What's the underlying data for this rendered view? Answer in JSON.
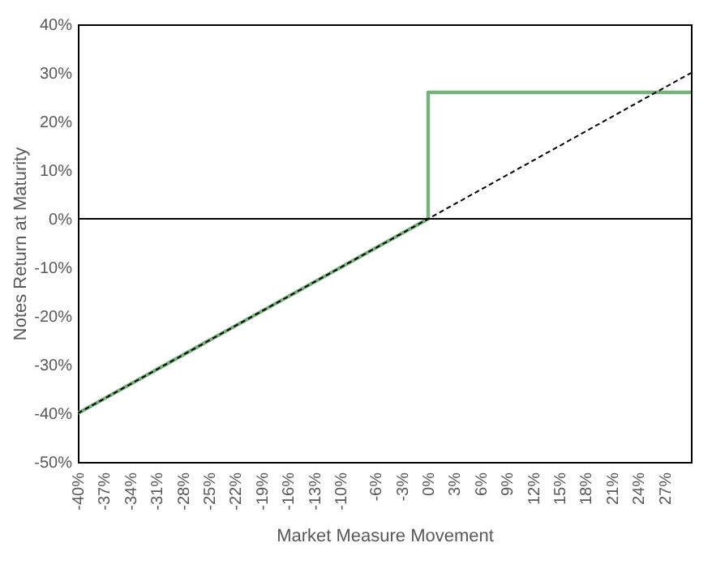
{
  "chart_data": {
    "type": "line",
    "xlabel": "Market Measure Movement",
    "ylabel": "Notes Return at Maturity",
    "xlim": [
      -40,
      30
    ],
    "ylim": [
      -50,
      40
    ],
    "xticks": [
      {
        "value": -40,
        "label": "-40%"
      },
      {
        "value": -37,
        "label": "-37%"
      },
      {
        "value": -34,
        "label": "-34%"
      },
      {
        "value": -31,
        "label": "-31%"
      },
      {
        "value": -28,
        "label": "-28%"
      },
      {
        "value": -25,
        "label": "-25%"
      },
      {
        "value": -22,
        "label": "-22%"
      },
      {
        "value": -19,
        "label": "-19%"
      },
      {
        "value": -16,
        "label": "-16%"
      },
      {
        "value": -13,
        "label": "-13%"
      },
      {
        "value": -10,
        "label": "-10%"
      },
      {
        "value": -6,
        "label": "-6%"
      },
      {
        "value": -3,
        "label": "-3%"
      },
      {
        "value": 0,
        "label": "0%"
      },
      {
        "value": 3,
        "label": "3%"
      },
      {
        "value": 6,
        "label": "6%"
      },
      {
        "value": 9,
        "label": "9%"
      },
      {
        "value": 12,
        "label": "12%"
      },
      {
        "value": 15,
        "label": "15%"
      },
      {
        "value": 18,
        "label": "18%"
      },
      {
        "value": 21,
        "label": "21%"
      },
      {
        "value": 24,
        "label": "24%"
      },
      {
        "value": 27,
        "label": "27%"
      }
    ],
    "yticks": [
      {
        "value": -50,
        "label": "-50%"
      },
      {
        "value": -40,
        "label": "-40%"
      },
      {
        "value": -30,
        "label": "-30%"
      },
      {
        "value": -20,
        "label": "-20%"
      },
      {
        "value": -10,
        "label": "-10%"
      },
      {
        "value": 0,
        "label": "0%"
      },
      {
        "value": 10,
        "label": "10%"
      },
      {
        "value": 20,
        "label": "20%"
      },
      {
        "value": 30,
        "label": "30%"
      },
      {
        "value": 40,
        "label": "40%"
      }
    ],
    "ref_lines": [
      {
        "axis": "y",
        "value": 0,
        "color": "#000000"
      }
    ],
    "series": [
      {
        "color": "#78b07c",
        "x": [
          -40,
          0,
          0,
          30
        ],
        "values": [
          -40,
          0,
          26,
          26
        ],
        "line_style": "solid"
      },
      {
        "color": "#000000",
        "x": [
          -40,
          30
        ],
        "values": [
          -40,
          30
        ],
        "line_style": "dashed"
      }
    ]
  }
}
